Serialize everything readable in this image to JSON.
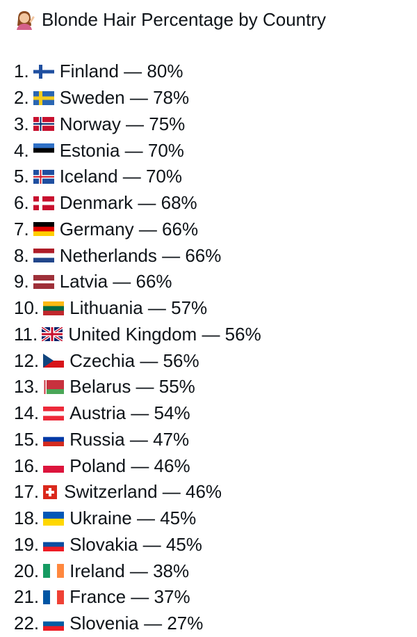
{
  "title": "Blonde Hair Percentage by Country",
  "items": [
    {
      "rank": "1.",
      "text": "Finland — 80%"
    },
    {
      "rank": "2.",
      "text": "Sweden — 78%"
    },
    {
      "rank": "3.",
      "text": "Norway — 75%"
    },
    {
      "rank": "4.",
      "text": "Estonia — 70%"
    },
    {
      "rank": "5.",
      "text": "Iceland — 70%"
    },
    {
      "rank": "6.",
      "text": "Denmark — 68%"
    },
    {
      "rank": "7.",
      "text": "Germany — 66%"
    },
    {
      "rank": "8.",
      "text": "Netherlands — 66%"
    },
    {
      "rank": "9.",
      "text": "Latvia — 66%"
    },
    {
      "rank": "10.",
      "text": "Lithuania — 57%"
    },
    {
      "rank": "11.",
      "text": "United Kingdom — 56%"
    },
    {
      "rank": "12.",
      "text": "Czechia — 56%"
    },
    {
      "rank": "13.",
      "text": "Belarus — 55%"
    },
    {
      "rank": "14.",
      "text": "Austria — 54%"
    },
    {
      "rank": "15.",
      "text": "Russia — 47%"
    },
    {
      "rank": "16.",
      "text": "Poland — 46%"
    },
    {
      "rank": "17.",
      "text": "Switzerland — 46%"
    },
    {
      "rank": "18.",
      "text": "Ukraine — 45%"
    },
    {
      "rank": "19.",
      "text": "Slovakia — 45%"
    },
    {
      "rank": "20.",
      "text": "Ireland — 38%"
    },
    {
      "rank": "21.",
      "text": "France — 37%"
    },
    {
      "rank": "22.",
      "text": "Slovenia — 27%"
    }
  ]
}
